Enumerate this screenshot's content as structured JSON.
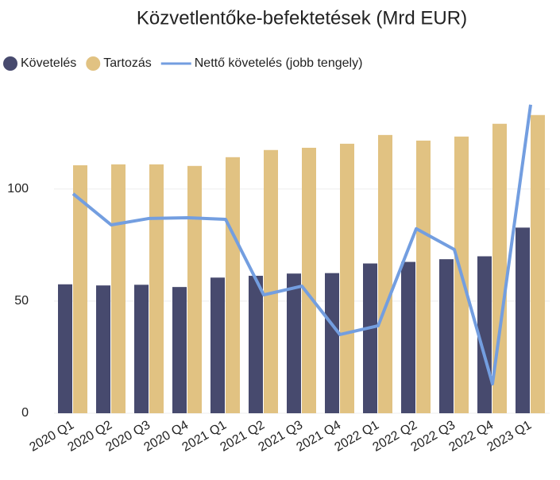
{
  "chart_data": {
    "type": "bar",
    "title": "Közvetlentőke-befektetések (Mrd EUR)",
    "categories": [
      "2020 Q1",
      "2020 Q2",
      "2020 Q3",
      "2020 Q4",
      "2021 Q1",
      "2021 Q2",
      "2021 Q3",
      "2021 Q4",
      "2022 Q1",
      "2022 Q2",
      "2022 Q3",
      "2022 Q4",
      "2023 Q1"
    ],
    "series": [
      {
        "name": "Követelés",
        "type": "bar",
        "color": "#474a6e",
        "values": [
          57.5,
          57,
          57.3,
          56.3,
          60.5,
          61.3,
          62.3,
          62.5,
          66.8,
          67.5,
          68.7,
          70,
          82.8
        ]
      },
      {
        "name": "Tartozás",
        "type": "bar",
        "color": "#e1c282",
        "values": [
          110.6,
          111,
          111,
          110.3,
          114.2,
          117.4,
          118.4,
          120.2,
          124.1,
          121.6,
          123.4,
          129.1,
          133
        ]
      },
      {
        "name": "Nettő követelés (jobb tengely)",
        "type": "line",
        "axis": "y2",
        "color": "#739ee0",
        "values": [
          97.9,
          84,
          86.9,
          87.2,
          86.5,
          52.8,
          56.7,
          35.1,
          39,
          82.3,
          73,
          13.1,
          137.6
        ]
      }
    ],
    "ylim": [
      0,
      140
    ],
    "yticks": [
      0,
      50,
      100
    ],
    "y2lim": [
      0,
      140
    ],
    "grid": true,
    "legend": "top"
  }
}
